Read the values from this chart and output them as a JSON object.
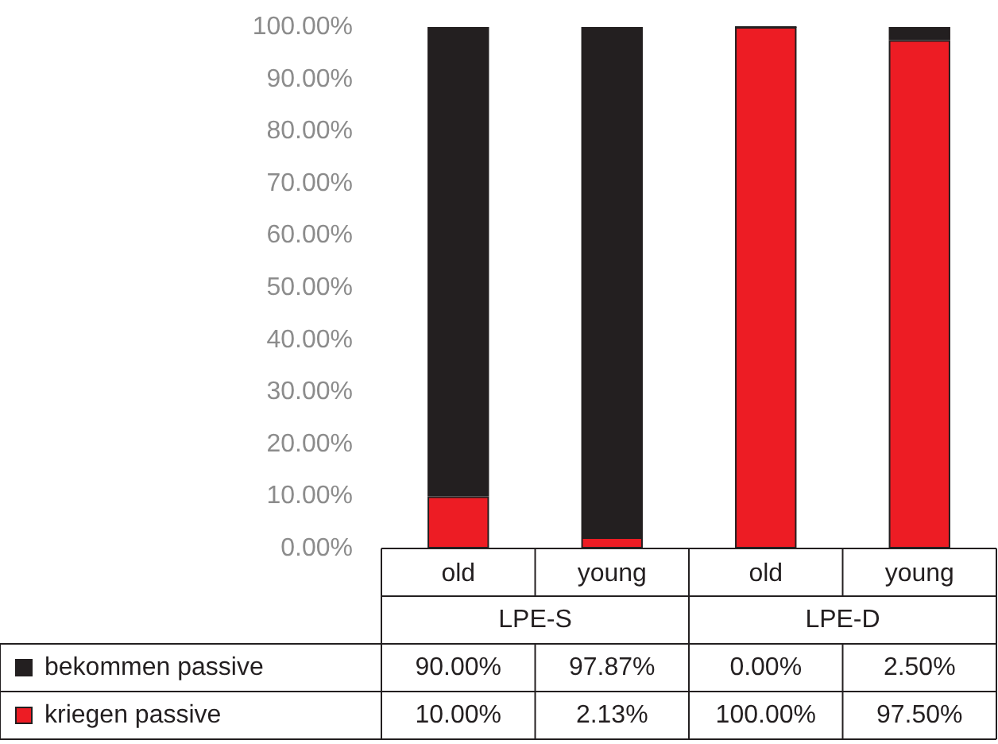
{
  "chart_data": {
    "type": "bar",
    "stacked": true,
    "categories": [
      "old",
      "young",
      "old",
      "young"
    ],
    "annotations": [
      "LPE-S",
      "LPE-D"
    ],
    "series": [
      {
        "name": "kriegen passive",
        "color": "#ed1c24",
        "values": [
          10,
          2.13,
          100,
          97.5
        ],
        "value_labels": [
          "10.00%",
          "2.13%",
          "100.00%",
          "97.50%"
        ]
      },
      {
        "name": "bekommen passive",
        "color": "#231f20",
        "values": [
          90,
          97.87,
          0,
          2.5
        ],
        "value_labels": [
          "90.00%",
          "97.87%",
          "0.00%",
          "2.50%"
        ]
      }
    ],
    "ylim": [
      0,
      100
    ],
    "yticks": [
      {
        "value": 0,
        "label": "0.00%"
      },
      {
        "value": 10,
        "label": "10.00%"
      },
      {
        "value": 20,
        "label": "20.00%"
      },
      {
        "value": 30,
        "label": "30.00%"
      },
      {
        "value": 40,
        "label": "40.00%"
      },
      {
        "value": 50,
        "label": "50.00%"
      },
      {
        "value": 60,
        "label": "60.00%"
      },
      {
        "value": 70,
        "label": "70.00%"
      },
      {
        "value": 80,
        "label": "80.00%"
      },
      {
        "value": 90,
        "label": "90.00%"
      },
      {
        "value": 100,
        "label": "100.00%"
      }
    ],
    "grid": false,
    "legend": "bottom"
  }
}
